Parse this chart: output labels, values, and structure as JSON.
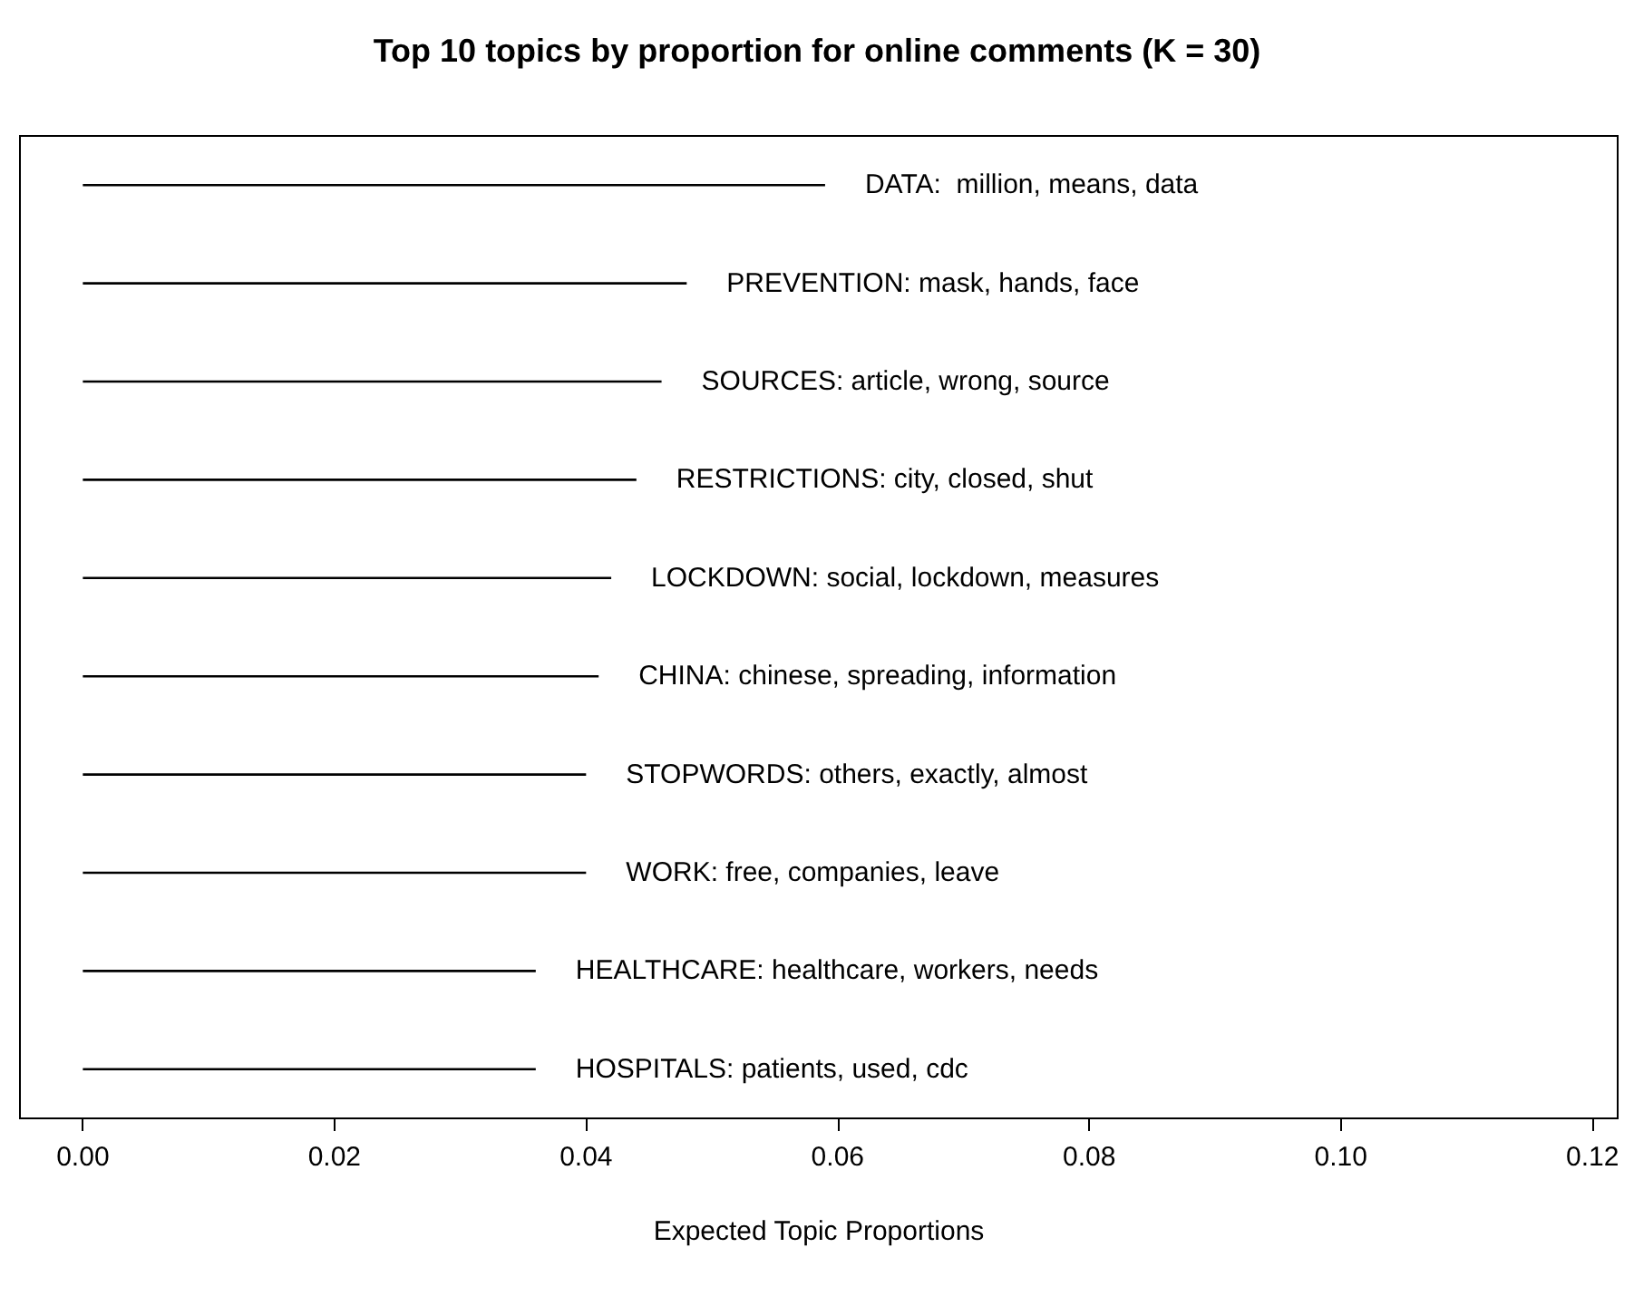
{
  "chart_data": {
    "type": "bar",
    "orientation": "horizontal",
    "title": "Top 10 topics by proportion for online comments (K = 30)",
    "xlabel": "Expected Topic Proportions",
    "categories": [
      "DATA:  million, means, data",
      "PREVENTION: mask, hands, face",
      "SOURCES: article, wrong, source",
      "RESTRICTIONS: city, closed, shut",
      "LOCKDOWN: social, lockdown, measures",
      "CHINA: chinese, spreading, information",
      "STOPWORDS: others, exactly, almost",
      "WORK: free, companies, leave",
      "HEALTHCARE: healthcare, workers, needs",
      "HOSPITALS: patients, used, cdc"
    ],
    "values": [
      0.059,
      0.048,
      0.046,
      0.044,
      0.042,
      0.041,
      0.04,
      0.04,
      0.036,
      0.036
    ],
    "color": "#000000",
    "xlim": [
      -0.005,
      0.122
    ],
    "xticks": [
      {
        "value": 0,
        "label": "0.00"
      },
      {
        "value": 0.02,
        "label": "0.02"
      },
      {
        "value": 0.04,
        "label": "0.04"
      },
      {
        "value": 0.06,
        "label": "0.06"
      },
      {
        "value": 0.08,
        "label": "0.08"
      },
      {
        "value": 0.1,
        "label": "0.10"
      },
      {
        "value": 0.12,
        "label": "0.12"
      }
    ],
    "tick_labels": "x",
    "grid": false
  }
}
